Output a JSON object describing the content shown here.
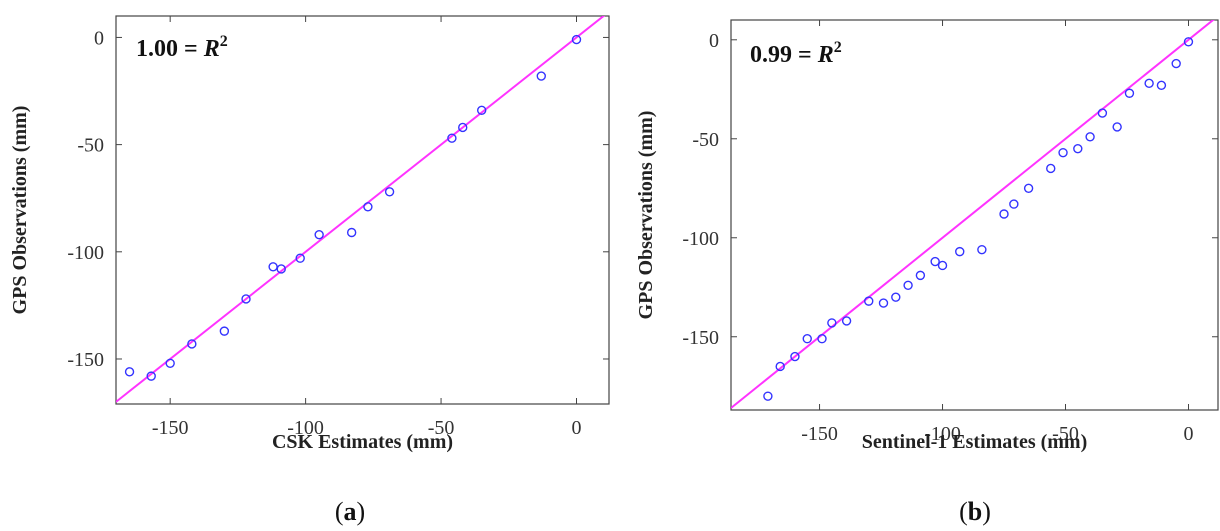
{
  "chart_data": [
    {
      "type": "scatter",
      "panel_label": "(a)",
      "annotation": {
        "value": "1.00 = ",
        "symbol": "R",
        "exponent": "2"
      },
      "xlabel": "CSK Estimates (mm)",
      "ylabel": "GPS Observations (mm)",
      "xlim": [
        -170,
        12
      ],
      "ylim": [
        -171,
        10
      ],
      "xticks": [
        -150,
        -100,
        -50,
        0
      ],
      "yticks": [
        0,
        -50,
        -100,
        -150
      ],
      "xtick_labels": [
        "-150",
        "-100",
        "-50",
        "0"
      ],
      "ytick_labels": [
        "0",
        "-50",
        "-100",
        "-150"
      ],
      "marker_color": "#3333ff",
      "line_color": "#ff33ff",
      "fit_line": {
        "slope": 1,
        "intercept": 0
      },
      "x": [
        -165,
        -157,
        -150,
        -142,
        -130,
        -122,
        -112,
        -109,
        -102,
        -95,
        -83,
        -77,
        -69,
        -46,
        -42,
        -35,
        -13,
        0
      ],
      "y": [
        -156,
        -158,
        -152,
        -143,
        -137,
        -122,
        -107,
        -108,
        -103,
        -92,
        -91,
        -79,
        -72,
        -47,
        -42,
        -34,
        -18,
        -1
      ]
    },
    {
      "type": "scatter",
      "panel_label": "(b)",
      "annotation": {
        "value": "0.99 = ",
        "symbol": "R",
        "exponent": "2"
      },
      "xlabel": "Sentinel-1 Estimates (mm)",
      "ylabel": "GPS Observations (mm)",
      "xlim": [
        -186,
        12
      ],
      "ylim": [
        -187,
        10
      ],
      "xticks": [
        -150,
        -100,
        -50,
        0
      ],
      "yticks": [
        0,
        -50,
        -100,
        -150
      ],
      "xtick_labels": [
        "-150",
        "-100",
        "-50",
        "0"
      ],
      "ytick_labels": [
        "0",
        "-50",
        "-100",
        "-150"
      ],
      "marker_color": "#3333ff",
      "line_color": "#ff33ff",
      "fit_line": {
        "slope": 1,
        "intercept": 0
      },
      "x": [
        -171,
        -166,
        -160,
        -155,
        -149,
        -145,
        -139,
        -130,
        -124,
        -119,
        -114,
        -109,
        -103,
        -100,
        -93,
        -84,
        -75,
        -71,
        -65,
        -56,
        -51,
        -45,
        -40,
        -35,
        -29,
        -24,
        -16,
        -11,
        -5,
        0
      ],
      "y": [
        -180,
        -165,
        -160,
        -151,
        -151,
        -143,
        -142,
        -132,
        -133,
        -130,
        -124,
        -119,
        -112,
        -114,
        -107,
        -106,
        -88,
        -83,
        -75,
        -65,
        -57,
        -55,
        -49,
        -37,
        -44,
        -27,
        -22,
        -23,
        -12,
        -1
      ]
    }
  ]
}
